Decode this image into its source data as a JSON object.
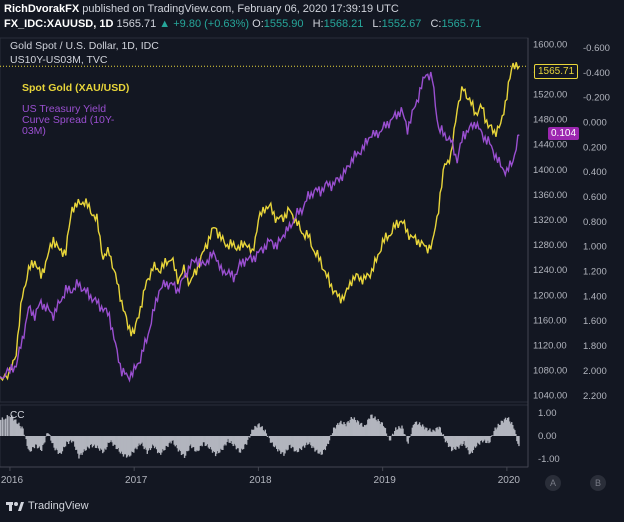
{
  "header": {
    "line1": {
      "author": "RichDvorakFX",
      "published": "published on TradingView.com, February 06, 2020 17:39:19 UTC"
    },
    "line2": {
      "symbol": "FX_IDC:XAUUSD, 1D",
      "last": "1565.71",
      "change": "▲ +9.80 (+0.63%)",
      "o_label": "O:",
      "o": "1555.90",
      "h_label": "H:",
      "h": "1568.21",
      "l_label": "L:",
      "l": "1552.67",
      "c_label": "C:",
      "c": "1565.71"
    }
  },
  "chart_data": {
    "type": "line",
    "title": "Gold Spot / U.S. Dollar, 1D, IDC",
    "subtitle": "US10Y-US03M, TVC",
    "x_ticks": [
      "2016",
      "2017",
      "2018",
      "2019",
      "2020"
    ],
    "left_axis": {
      "ticks": [
        "1600.00",
        "1560.00",
        "1520.00",
        "1480.00",
        "1440.00",
        "1400.00",
        "1360.00",
        "1320.00",
        "1280.00",
        "1240.00",
        "1200.00",
        "1160.00",
        "1120.00",
        "1080.00",
        "1040.00"
      ],
      "range": [
        1030,
        1610
      ]
    },
    "right_axis": {
      "ticks": [
        "-0.600",
        "-0.400",
        "-0.200",
        "0.000",
        "0.200",
        "0.400",
        "0.600",
        "0.800",
        "1.000",
        "1.200",
        "1.400",
        "1.600",
        "1.800",
        "2.000",
        "2.200"
      ],
      "range": [
        -0.68,
        2.25
      ],
      "inverted": true
    },
    "series": [
      {
        "name": "Spot Gold (XAU/USD)",
        "color": "#e8d53a",
        "axis": "left",
        "x": [
          2015.92,
          2016.0,
          2016.05,
          2016.1,
          2016.15,
          2016.2,
          2016.25,
          2016.3,
          2016.35,
          2016.4,
          2016.45,
          2016.5,
          2016.55,
          2016.6,
          2016.65,
          2016.7,
          2016.75,
          2016.8,
          2016.85,
          2016.9,
          2016.95,
          2017.0,
          2017.05,
          2017.1,
          2017.15,
          2017.2,
          2017.25,
          2017.3,
          2017.35,
          2017.4,
          2017.45,
          2017.5,
          2017.55,
          2017.6,
          2017.65,
          2017.7,
          2017.75,
          2017.8,
          2017.85,
          2017.9,
          2017.95,
          2018.0,
          2018.05,
          2018.1,
          2018.15,
          2018.2,
          2018.25,
          2018.3,
          2018.35,
          2018.4,
          2018.45,
          2018.5,
          2018.55,
          2018.6,
          2018.65,
          2018.7,
          2018.75,
          2018.8,
          2018.85,
          2018.9,
          2018.95,
          2019.0,
          2019.05,
          2019.1,
          2019.15,
          2019.2,
          2019.25,
          2019.3,
          2019.35,
          2019.4,
          2019.45,
          2019.5,
          2019.55,
          2019.6,
          2019.65,
          2019.7,
          2019.75,
          2019.8,
          2019.85,
          2019.9,
          2019.95,
          2020.0,
          2020.05,
          2020.1
        ],
        "values": [
          1070,
          1075,
          1110,
          1200,
          1240,
          1255,
          1230,
          1260,
          1290,
          1270,
          1270,
          1340,
          1345,
          1350,
          1335,
          1320,
          1260,
          1270,
          1230,
          1190,
          1150,
          1140,
          1180,
          1220,
          1245,
          1240,
          1250,
          1260,
          1225,
          1240,
          1220,
          1240,
          1265,
          1290,
          1310,
          1290,
          1280,
          1280,
          1275,
          1285,
          1265,
          1320,
          1340,
          1340,
          1320,
          1325,
          1335,
          1320,
          1300,
          1295,
          1270,
          1255,
          1230,
          1210,
          1195,
          1200,
          1225,
          1230,
          1225,
          1235,
          1255,
          1285,
          1295,
          1310,
          1320,
          1300,
          1290,
          1285,
          1275,
          1280,
          1340,
          1410,
          1420,
          1500,
          1530,
          1510,
          1490,
          1500,
          1470,
          1460,
          1470,
          1520,
          1570,
          1565
        ]
      },
      {
        "name": "US Treasury Yield Curve Spread (10Y-03M)",
        "color": "#9a4fd0",
        "axis": "right",
        "x": [
          2015.92,
          2016.0,
          2016.05,
          2016.1,
          2016.15,
          2016.2,
          2016.25,
          2016.3,
          2016.35,
          2016.4,
          2016.45,
          2016.5,
          2016.55,
          2016.6,
          2016.65,
          2016.7,
          2016.75,
          2016.8,
          2016.85,
          2016.9,
          2016.95,
          2017.0,
          2017.05,
          2017.1,
          2017.15,
          2017.2,
          2017.25,
          2017.3,
          2017.35,
          2017.4,
          2017.45,
          2017.5,
          2017.55,
          2017.6,
          2017.65,
          2017.7,
          2017.75,
          2017.8,
          2017.85,
          2017.9,
          2017.95,
          2018.0,
          2018.05,
          2018.1,
          2018.15,
          2018.2,
          2018.25,
          2018.3,
          2018.35,
          2018.4,
          2018.45,
          2018.5,
          2018.55,
          2018.6,
          2018.65,
          2018.7,
          2018.75,
          2018.8,
          2018.85,
          2018.9,
          2018.95,
          2019.0,
          2019.05,
          2019.1,
          2019.15,
          2019.2,
          2019.25,
          2019.3,
          2019.35,
          2019.4,
          2019.45,
          2019.5,
          2019.55,
          2019.6,
          2019.65,
          2019.7,
          2019.75,
          2019.8,
          2019.85,
          2019.9,
          2019.95,
          2020.0,
          2020.05,
          2020.1
        ],
        "values": [
          2.05,
          2.0,
          1.95,
          1.75,
          1.5,
          1.55,
          1.45,
          1.5,
          1.55,
          1.45,
          1.35,
          1.35,
          1.3,
          1.35,
          1.4,
          1.45,
          1.5,
          1.55,
          1.8,
          2.0,
          2.05,
          2.0,
          1.9,
          1.75,
          1.55,
          1.35,
          1.3,
          1.3,
          1.35,
          1.25,
          1.15,
          1.1,
          1.15,
          1.1,
          1.05,
          1.2,
          1.2,
          1.25,
          1.15,
          1.1,
          1.1,
          1.05,
          1.0,
          0.95,
          1.0,
          0.9,
          0.85,
          0.75,
          0.7,
          0.6,
          0.55,
          0.55,
          0.5,
          0.5,
          0.45,
          0.4,
          0.3,
          0.25,
          0.2,
          0.1,
          0.1,
          0.05,
          0.0,
          -0.05,
          -0.1,
          0.05,
          -0.1,
          -0.25,
          -0.4,
          -0.35,
          0.05,
          0.1,
          0.15,
          0.3,
          0.1,
          0.05,
          0.0,
          0.1,
          0.15,
          0.25,
          0.35,
          0.4,
          0.3,
          0.1
        ]
      }
    ],
    "lower_panel": {
      "label": "CC",
      "ticks": [
        "1.00",
        "0.00",
        "-1.00"
      ],
      "color": "#b2b5be",
      "x": [
        2015.92,
        2016.0,
        2016.05,
        2016.1,
        2016.15,
        2016.2,
        2016.25,
        2016.3,
        2016.35,
        2016.4,
        2016.45,
        2016.5,
        2016.55,
        2016.6,
        2016.65,
        2016.7,
        2016.75,
        2016.8,
        2016.85,
        2016.9,
        2016.95,
        2017.0,
        2017.05,
        2017.1,
        2017.15,
        2017.2,
        2017.25,
        2017.3,
        2017.35,
        2017.4,
        2017.45,
        2017.5,
        2017.55,
        2017.6,
        2017.65,
        2017.7,
        2017.75,
        2017.8,
        2017.85,
        2017.9,
        2017.95,
        2018.0,
        2018.05,
        2018.1,
        2018.15,
        2018.2,
        2018.25,
        2018.3,
        2018.35,
        2018.4,
        2018.45,
        2018.5,
        2018.55,
        2018.6,
        2018.65,
        2018.7,
        2018.75,
        2018.8,
        2018.85,
        2018.9,
        2018.95,
        2019.0,
        2019.05,
        2019.1,
        2019.15,
        2019.2,
        2019.25,
        2019.3,
        2019.35,
        2019.4,
        2019.45,
        2019.5,
        2019.55,
        2019.6,
        2019.65,
        2019.7,
        2019.75,
        2019.8,
        2019.85,
        2019.9,
        2019.95,
        2020.0,
        2020.05,
        2020.1
      ],
      "values": [
        0.7,
        0.9,
        0.6,
        0.3,
        -0.7,
        -0.4,
        -0.6,
        0.2,
        -0.5,
        -0.8,
        -0.3,
        -0.2,
        -0.9,
        -0.6,
        -0.4,
        -0.5,
        -0.7,
        -0.2,
        -0.5,
        -0.8,
        -0.9,
        -0.6,
        -0.3,
        -0.7,
        -0.4,
        -0.8,
        -0.5,
        -0.2,
        -0.6,
        -0.9,
        -0.4,
        -0.7,
        -0.3,
        -0.5,
        -0.8,
        -0.6,
        -0.2,
        -0.4,
        -0.7,
        -0.3,
        0.3,
        0.5,
        0.2,
        -0.3,
        -0.6,
        -0.8,
        -0.4,
        -0.7,
        -0.5,
        -0.3,
        -0.6,
        -0.8,
        -0.4,
        0.3,
        0.6,
        0.5,
        0.8,
        0.6,
        0.4,
        0.9,
        0.7,
        0.5,
        -0.2,
        0.3,
        0.4,
        -0.3,
        0.6,
        0.5,
        0.3,
        0.2,
        0.4,
        -0.2,
        -0.6,
        -0.5,
        -0.3,
        -0.8,
        -0.4,
        -0.2,
        -0.3,
        0.3,
        0.6,
        0.8,
        0.4,
        -0.7
      ]
    }
  },
  "legend": {
    "gold": "Spot Gold (XAU/USD)",
    "yield": "US Treasury Yield Curve Spread (10Y-03M)"
  },
  "tags": {
    "gold": "1565.71",
    "yield": "0.104"
  },
  "scale_buttons": {
    "a": "A",
    "b": "B"
  },
  "footer": {
    "brand": "TradingView"
  }
}
